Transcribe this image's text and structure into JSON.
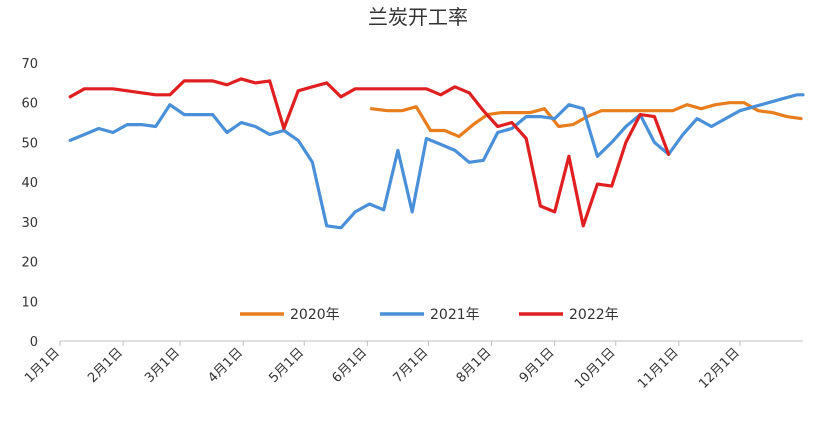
{
  "chart_data": {
    "type": "line",
    "title": "兰炭开工率",
    "xlabel": "",
    "ylabel": "",
    "ylim": [
      0,
      70
    ],
    "yticks": [
      0,
      10,
      20,
      30,
      40,
      50,
      60,
      70
    ],
    "xlim": [
      0,
      365
    ],
    "xticks": [
      {
        "label": "1月1日",
        "day": 0
      },
      {
        "label": "2月1日",
        "day": 31
      },
      {
        "label": "3月1日",
        "day": 59
      },
      {
        "label": "4月1日",
        "day": 90
      },
      {
        "label": "5月1日",
        "day": 120
      },
      {
        "label": "6月1日",
        "day": 151
      },
      {
        "label": "7月1日",
        "day": 181
      },
      {
        "label": "8月1日",
        "day": 212
      },
      {
        "label": "9月1日",
        "day": 243
      },
      {
        "label": "10月1日",
        "day": 273
      },
      {
        "label": "11月1日",
        "day": 304
      },
      {
        "label": "12月1日",
        "day": 334
      }
    ],
    "grid": false,
    "legend": "bottom-center",
    "series": [
      {
        "name": "2020年",
        "color": "#e87d1e",
        "x": [
          153,
          161,
          168,
          175,
          182,
          189,
          196,
          203,
          210,
          217,
          224,
          231,
          238,
          245,
          252,
          259,
          266,
          273,
          280,
          287,
          294,
          301,
          308,
          315,
          322,
          329,
          336,
          343,
          350,
          357,
          364
        ],
        "y": [
          58.5,
          58.0,
          58.0,
          59.0,
          53.0,
          53.0,
          51.5,
          54.5,
          57.0,
          57.5,
          57.5,
          57.5,
          58.5,
          54.0,
          54.5,
          56.5,
          58.0,
          58.0,
          58.0,
          58.0,
          58.0,
          58.0,
          59.5,
          58.5,
          59.5,
          60.0,
          60.0,
          58.0,
          57.5,
          56.5,
          56.0
        ]
      },
      {
        "name": "2021年",
        "color": "#4a90d9",
        "x": [
          5,
          12,
          19,
          26,
          33,
          40,
          47,
          54,
          61,
          68,
          75,
          82,
          89,
          96,
          103,
          110,
          117,
          124,
          131,
          138,
          145,
          152,
          159,
          166,
          173,
          180,
          187,
          194,
          201,
          208,
          215,
          222,
          229,
          236,
          243,
          250,
          257,
          264,
          271,
          278,
          285,
          292,
          299,
          306,
          313,
          320,
          327,
          334,
          341,
          348,
          355,
          362,
          365
        ],
        "y": [
          50.5,
          52.0,
          53.5,
          52.5,
          54.5,
          54.5,
          54.0,
          59.5,
          57.0,
          57.0,
          57.0,
          52.5,
          55.0,
          54.0,
          52.0,
          53.0,
          50.5,
          45.0,
          29.0,
          28.5,
          32.5,
          34.5,
          33.0,
          48.0,
          32.5,
          51.0,
          49.5,
          48.0,
          45.0,
          45.5,
          52.5,
          53.5,
          56.5,
          56.5,
          56.0,
          59.5,
          58.5,
          46.5,
          50.0,
          54.0,
          57.0,
          50.0,
          47.0,
          52.0,
          56.0,
          54.0,
          56.0,
          58.0,
          59.0,
          60.0,
          61.0,
          62.0,
          62.0
        ]
      },
      {
        "name": "2022年",
        "color": "#e02020",
        "x": [
          5,
          12,
          19,
          26,
          33,
          40,
          47,
          54,
          61,
          68,
          75,
          82,
          89,
          96,
          103,
          110,
          117,
          124,
          131,
          138,
          145,
          152,
          159,
          166,
          173,
          180,
          187,
          194,
          201,
          208,
          215,
          222,
          229,
          236,
          243,
          250,
          257,
          264,
          271,
          278,
          285,
          292,
          299
        ],
        "y": [
          61.5,
          63.5,
          63.5,
          63.5,
          63.0,
          62.5,
          62.0,
          62.0,
          65.5,
          65.5,
          65.5,
          64.5,
          66.0,
          65.0,
          65.5,
          53.5,
          63.0,
          64.0,
          65.0,
          61.5,
          63.5,
          63.5,
          63.5,
          63.5,
          63.5,
          63.5,
          62.0,
          64.0,
          62.5,
          58.0,
          54.0,
          55.0,
          51.0,
          34.0,
          32.5,
          46.5,
          29.0,
          39.5,
          39.0,
          50.0,
          57.0,
          56.5,
          47.0
        ]
      }
    ]
  }
}
